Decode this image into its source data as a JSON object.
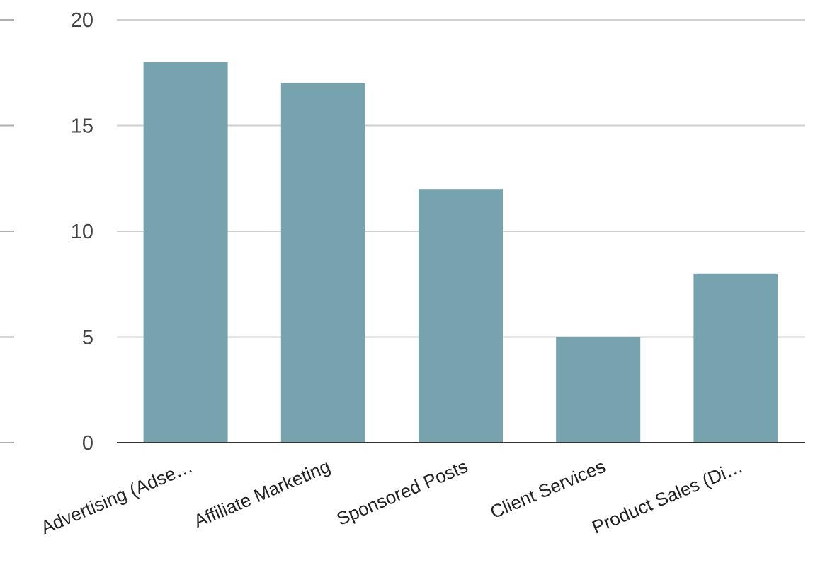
{
  "colors": {
    "bar": "#76A3AD"
  },
  "chart_data": {
    "type": "bar",
    "categories": [
      "Advertising (Adse…",
      "Affiliate Marketing",
      "Sponsored Posts",
      "Client Services",
      "Product Sales (Di…"
    ],
    "values": [
      18,
      17,
      12,
      5,
      8
    ],
    "yticks": [
      0,
      5,
      10,
      15,
      20
    ],
    "ylim": [
      0,
      20
    ],
    "grid": true,
    "legend": "none"
  }
}
